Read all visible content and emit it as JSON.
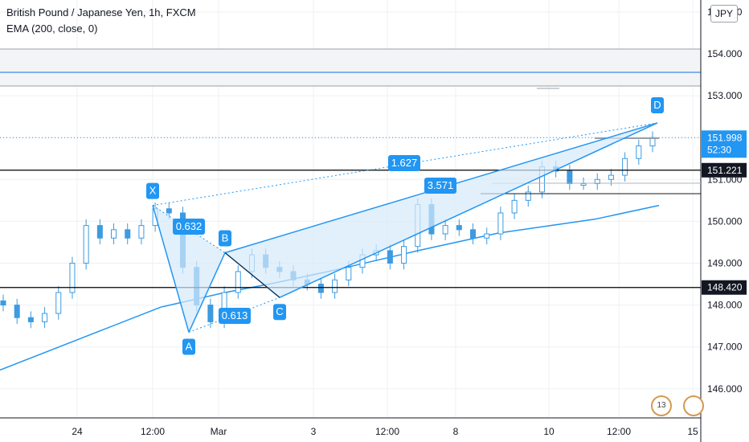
{
  "header": {
    "title": "British Pound / Japanese Yen, 1h, FXCM",
    "indicator": "EMA (200, close, 0)",
    "currency": "JPY"
  },
  "events": {
    "badge_count": "13"
  },
  "colors": {
    "pattern": "#2196f3",
    "pattern_fill": "#d6eafb",
    "candle": "#3d9be0",
    "grid": "#eef0f3",
    "level_line": "#000000",
    "price_label_bg": "#131722"
  },
  "chart_data": {
    "type": "candlestick",
    "title": "British Pound / Japanese Yen, 1h, FXCM",
    "ylim": [
      145.2,
      155.5
    ],
    "y_ticks": [
      "146.000",
      "147.000",
      "148.000",
      "149.000",
      "150.000",
      "151.000",
      "152.000",
      "153.000",
      "154.000",
      "155.000"
    ],
    "x_ticks": [
      "24",
      "12:00",
      "Mar",
      "3",
      "12:00",
      "8",
      "10",
      "12:00",
      "15"
    ],
    "price_labels": [
      {
        "value": 151.998,
        "text": "151.998",
        "sub": "52:30"
      },
      {
        "value": 151.221,
        "text": "151.221"
      },
      {
        "value": 148.42,
        "text": "148.420"
      }
    ],
    "horizontal_levels": [
      151.221,
      148.42
    ],
    "current_price": 151.998,
    "harmonic_pattern": {
      "points": [
        {
          "label": "X",
          "value": 150.38
        },
        {
          "label": "A",
          "value": 147.35
        },
        {
          "label": "B",
          "value": 149.25
        },
        {
          "label": "C",
          "value": 148.18
        },
        {
          "label": "D",
          "value": 152.35
        }
      ],
      "ratios": [
        {
          "label": "0.632",
          "between": "XA-AB"
        },
        {
          "label": "0.613",
          "between": "AB-BC"
        },
        {
          "label": "1.627",
          "between": "XA-XD"
        },
        {
          "label": "3.571",
          "between": "BC-CD"
        }
      ]
    },
    "ema_200": [
      146.45,
      147.2,
      147.95,
      148.3,
      148.52,
      148.85,
      149.3,
      149.72,
      150.05,
      150.38
    ],
    "candles_close": [
      148.0,
      147.7,
      147.6,
      147.8,
      148.3,
      149.0,
      149.9,
      149.6,
      149.8,
      149.6,
      149.9,
      150.3,
      150.2,
      148.9,
      148.0,
      147.6,
      148.3,
      148.8,
      149.2,
      148.9,
      148.8,
      148.6,
      148.5,
      148.3,
      148.6,
      148.9,
      149.2,
      149.3,
      149.0,
      149.4,
      150.4,
      149.7,
      149.9,
      149.8,
      149.6,
      149.7,
      150.2,
      150.5,
      150.7,
      151.3,
      151.2,
      150.9,
      150.9,
      151.0,
      151.1,
      151.5,
      151.8,
      152.0
    ]
  }
}
